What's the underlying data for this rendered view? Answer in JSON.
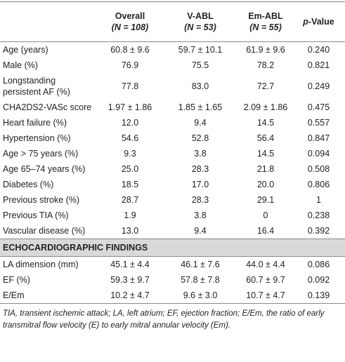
{
  "table": {
    "header": [
      {
        "line1": "",
        "line2": ""
      },
      {
        "line1": "Overall",
        "line2": "(N = 108)"
      },
      {
        "line1": "V-ABL",
        "line2": "(N = 53)"
      },
      {
        "line1": "Em-ABL",
        "line2": "(N = 55)"
      },
      {
        "italic": "p",
        "rest": "-Value"
      }
    ],
    "rows": [
      [
        "Age (years)",
        "60.8 ± 9.6",
        "59.7 ± 10.1",
        "61.9 ± 9.6",
        "0.240"
      ],
      [
        "Male (%)",
        "76.9",
        "75.5",
        "78.2",
        "0.821"
      ],
      [
        "Longstanding persistent AF (%)",
        "77.8",
        "83.0",
        "72.7",
        "0.249"
      ],
      [
        "CHA2DS2-VASc score",
        "1.97 ± 1.86",
        "1.85 ± 1.65",
        "2.09 ± 1.86",
        "0.475"
      ],
      [
        "Heart failure (%)",
        "12.0",
        "9.4",
        "14.5",
        "0.557"
      ],
      [
        "Hypertension (%)",
        "54.6",
        "52.8",
        "56.4",
        "0.847"
      ],
      [
        "Age > 75 years (%)",
        "9.3",
        "3.8",
        "14.5",
        "0.094"
      ],
      [
        "Age 65–74 years (%)",
        "25.0",
        "28.3",
        "21.8",
        "0.508"
      ],
      [
        "Diabetes (%)",
        "18.5",
        "17.0",
        "20.0",
        "0.806"
      ],
      [
        "Previous stroke (%)",
        "28.7",
        "28.3",
        "29.1",
        "1"
      ],
      [
        "Previous TIA (%)",
        "1.9",
        "3.8",
        "0",
        "0.238"
      ],
      [
        "Vascular disease (%)",
        "13.0",
        "9.4",
        "16.4",
        "0.392"
      ]
    ],
    "section": "ECHOCARDIOGRAPHIC FINDINGS",
    "section_rows": [
      [
        "LA dimension (mm)",
        "45.1 ± 4.4",
        "46.1 ± 7.6",
        "44.0 ± 4.4",
        "0.086"
      ],
      [
        "EF (%)",
        "59.3 ± 9.7",
        "57.8 ± 7.8",
        "60.7 ± 9.7",
        "0.092"
      ],
      [
        "E/Em",
        "10.2 ± 4.7",
        "9.6 ± 3.0",
        "10.7 ± 4.7",
        "0.139"
      ]
    ],
    "footnote": "TIA, transient ischemic attack; LA, left atrium; EF, ejection fraction; E/Em, the ratio of early transmitral flow velocity (E) to early mitral annular velocity (Em)."
  }
}
